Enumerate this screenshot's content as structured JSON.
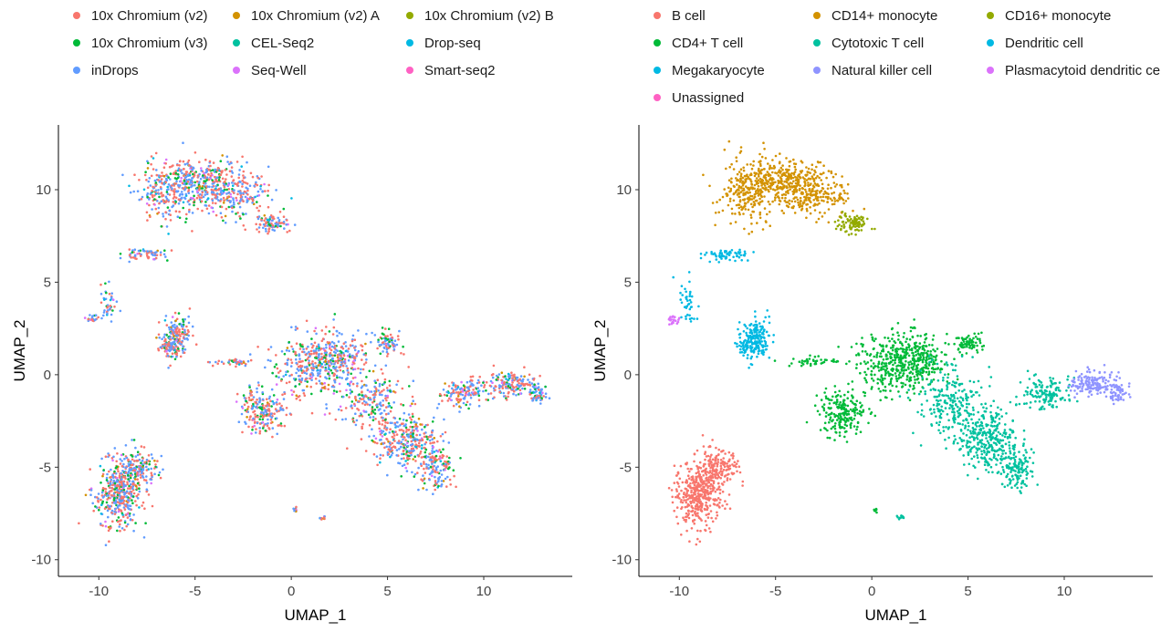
{
  "chart_data": [
    {
      "type": "scatter",
      "panel": "left",
      "title": "",
      "xlabel": "UMAP_1",
      "ylabel": "UMAP_2",
      "xlim": [
        -12.1,
        14.6
      ],
      "ylim": [
        -10.9,
        13.5
      ],
      "xticks": [
        -10,
        -5,
        0,
        5,
        10
      ],
      "yticks": [
        -10,
        -5,
        0,
        5,
        10
      ],
      "grid": false,
      "legend_position": "top",
      "legend": [
        {
          "label": "10x Chromium (v2)",
          "color": "#F8766D"
        },
        {
          "label": "10x Chromium (v2) A",
          "color": "#D39200"
        },
        {
          "label": "10x Chromium (v2) B",
          "color": "#93AA00"
        },
        {
          "label": "10x Chromium (v3)",
          "color": "#00BA38"
        },
        {
          "label": "CEL-Seq2",
          "color": "#00C19F"
        },
        {
          "label": "Drop-seq",
          "color": "#00B9E3"
        },
        {
          "label": "inDrops",
          "color": "#619CFF"
        },
        {
          "label": "Seq-Well",
          "color": "#DB72FB"
        },
        {
          "label": "Smart-seq2",
          "color": "#FF61C3"
        }
      ]
    },
    {
      "type": "scatter",
      "panel": "right",
      "title": "",
      "xlabel": "UMAP_1",
      "ylabel": "UMAP_2",
      "xlim": [
        -12.1,
        14.6
      ],
      "ylim": [
        -10.9,
        13.5
      ],
      "xticks": [
        -10,
        -5,
        0,
        5,
        10
      ],
      "yticks": [
        -10,
        -5,
        0,
        5,
        10
      ],
      "grid": false,
      "legend_position": "top",
      "legend": [
        {
          "label": "B cell",
          "color": "#F8766D"
        },
        {
          "label": "CD14+ monocyte",
          "color": "#D39200"
        },
        {
          "label": "CD16+ monocyte",
          "color": "#93AA00"
        },
        {
          "label": "CD4+ T cell",
          "color": "#00BA38"
        },
        {
          "label": "Cytotoxic T cell",
          "color": "#00C19F"
        },
        {
          "label": "Dendritic cell",
          "color": "#00B9E3"
        },
        {
          "label": "Megakaryocyte",
          "color": "#00B9E3"
        },
        {
          "label": "Natural killer cell",
          "color": "#8F94FF"
        },
        {
          "label": "Plasmacytoid dendritic cell",
          "color": "#DB72FB"
        },
        {
          "label": "Unassigned",
          "color": "#FF61C3"
        }
      ]
    }
  ]
}
